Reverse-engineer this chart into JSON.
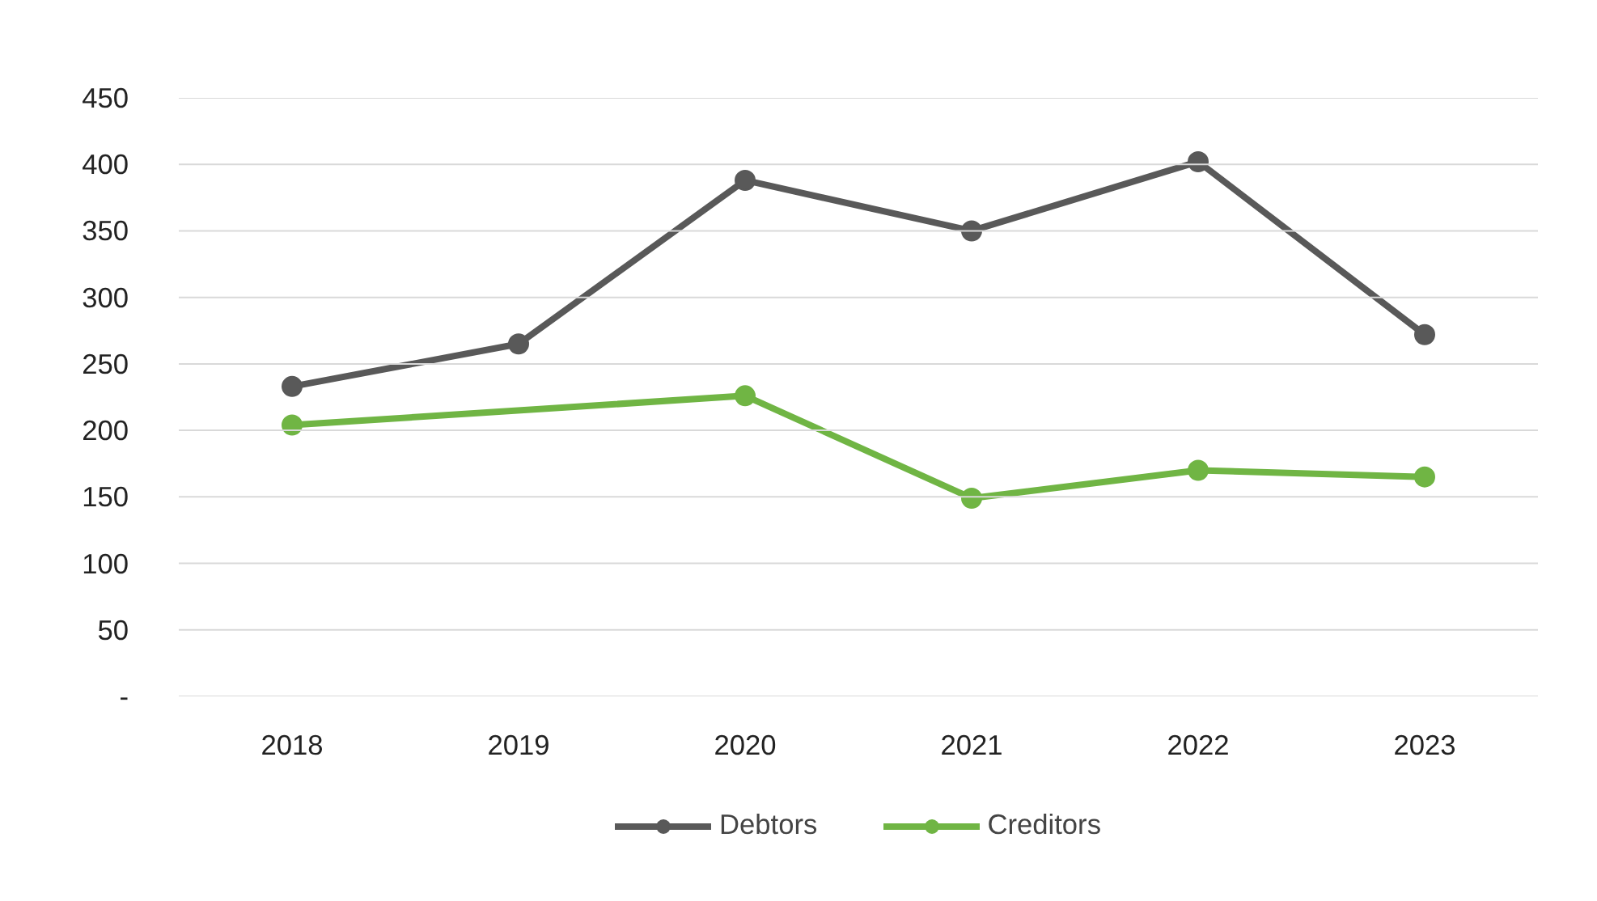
{
  "chart_data": {
    "type": "line",
    "categories": [
      "2018",
      "2019",
      "2020",
      "2021",
      "2022",
      "2023"
    ],
    "series": [
      {
        "name": "Debtors",
        "color": "#595959",
        "values": [
          233,
          265,
          388,
          350,
          402,
          272
        ]
      },
      {
        "name": "Creditors",
        "color": "#70b544",
        "values": [
          204,
          null,
          226,
          149,
          170,
          165
        ]
      }
    ],
    "ylim": [
      0,
      450
    ],
    "yticks": [
      {
        "value": 0,
        "label": "-"
      },
      50,
      100,
      150,
      200,
      250,
      300,
      350,
      400,
      450
    ],
    "grid": "y",
    "legend": "bottom",
    "marker": "circle",
    "line_style": "solid"
  }
}
